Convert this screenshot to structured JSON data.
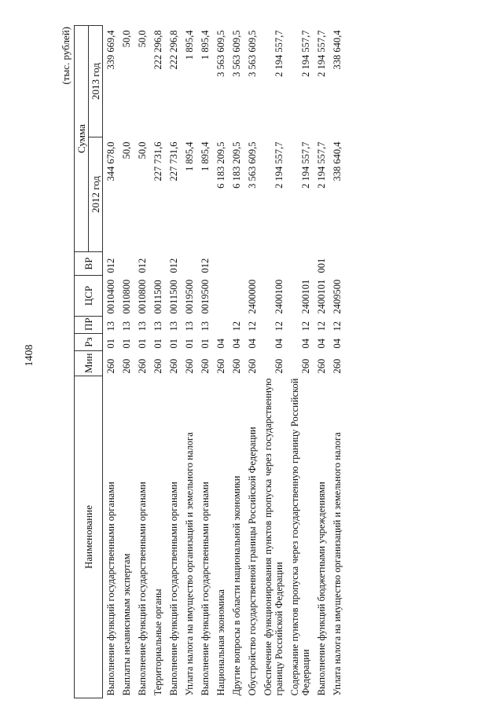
{
  "page_number": "1408",
  "unit": "(тыс. рублей)",
  "headers": {
    "name": "Наименование",
    "min": "Мин",
    "rz": "Рз",
    "pr": "ПР",
    "csr": "ЦСР",
    "vr": "ВР",
    "sum": "Сумма",
    "y2012": "2012 год",
    "y2013": "2013 год"
  },
  "rows": [
    {
      "name": "Выполнение функций государственными органами",
      "min": "260",
      "rz": "01",
      "pr": "13",
      "csr": "0010400",
      "vr": "012",
      "y2012": "344 678,0",
      "y2013": "339 669,4"
    },
    {
      "name": "Выплаты независимым экспертам",
      "min": "260",
      "rz": "01",
      "pr": "13",
      "csr": "0010800",
      "vr": "",
      "y2012": "50,0",
      "y2013": "50,0"
    },
    {
      "name": "Выполнение функций государственными органами",
      "min": "260",
      "rz": "01",
      "pr": "13",
      "csr": "0010800",
      "vr": "012",
      "y2012": "50,0",
      "y2013": "50,0"
    },
    {
      "name": "Территориальные органы",
      "min": "260",
      "rz": "01",
      "pr": "13",
      "csr": "0011500",
      "vr": "",
      "y2012": "227 731,6",
      "y2013": "222 296,8"
    },
    {
      "name": "Выполнение функций государственными органами",
      "min": "260",
      "rz": "01",
      "pr": "13",
      "csr": "0011500",
      "vr": "012",
      "y2012": "227 731,6",
      "y2013": "222 296,8"
    },
    {
      "name": "Уплата налога на имущество организаций и земельного налога",
      "min": "260",
      "rz": "01",
      "pr": "13",
      "csr": "0019500",
      "vr": "",
      "y2012": "1 895,4",
      "y2013": "1 895,4"
    },
    {
      "name": "Выполнение функций государственными органами",
      "min": "260",
      "rz": "01",
      "pr": "13",
      "csr": "0019500",
      "vr": "012",
      "y2012": "1 895,4",
      "y2013": "1 895,4"
    },
    {
      "name": "Национальная экономика",
      "min": "260",
      "rz": "04",
      "pr": "",
      "csr": "",
      "vr": "",
      "y2012": "6 183 209,5",
      "y2013": "3 563 609,5"
    },
    {
      "name": "Другие вопросы в области национальной экономики",
      "min": "260",
      "rz": "04",
      "pr": "12",
      "csr": "",
      "vr": "",
      "y2012": "6 183 209,5",
      "y2013": "3 563 609,5"
    },
    {
      "name": "Обустройство государственной границы Российской Федерации",
      "min": "260",
      "rz": "04",
      "pr": "12",
      "csr": "2400000",
      "vr": "",
      "y2012": "3 563 609,5",
      "y2013": "3 563 609,5"
    },
    {
      "name": "Обеспечение функционирования пунктов пропуска через государственную границу Российской Федерации",
      "min": "260",
      "rz": "04",
      "pr": "12",
      "csr": "2400100",
      "vr": "",
      "y2012": "2 194 557,7",
      "y2013": "2 194 557,7"
    },
    {
      "name": "Содержание пунктов пропуска через государственную границу Российской Федерации",
      "min": "260",
      "rz": "04",
      "pr": "12",
      "csr": "2400101",
      "vr": "",
      "y2012": "2 194 557,7",
      "y2013": "2 194 557,7"
    },
    {
      "name": "Выполнение функций бюджетными учреждениями",
      "min": "260",
      "rz": "04",
      "pr": "12",
      "csr": "2400101",
      "vr": "001",
      "y2012": "2 194 557,7",
      "y2013": "2 194 557,7"
    },
    {
      "name": "Уплата налога на имущество организаций и земельного налога",
      "min": "260",
      "rz": "04",
      "pr": "12",
      "csr": "2409500",
      "vr": "",
      "y2012": "338 640,4",
      "y2013": "338 640,4"
    }
  ]
}
